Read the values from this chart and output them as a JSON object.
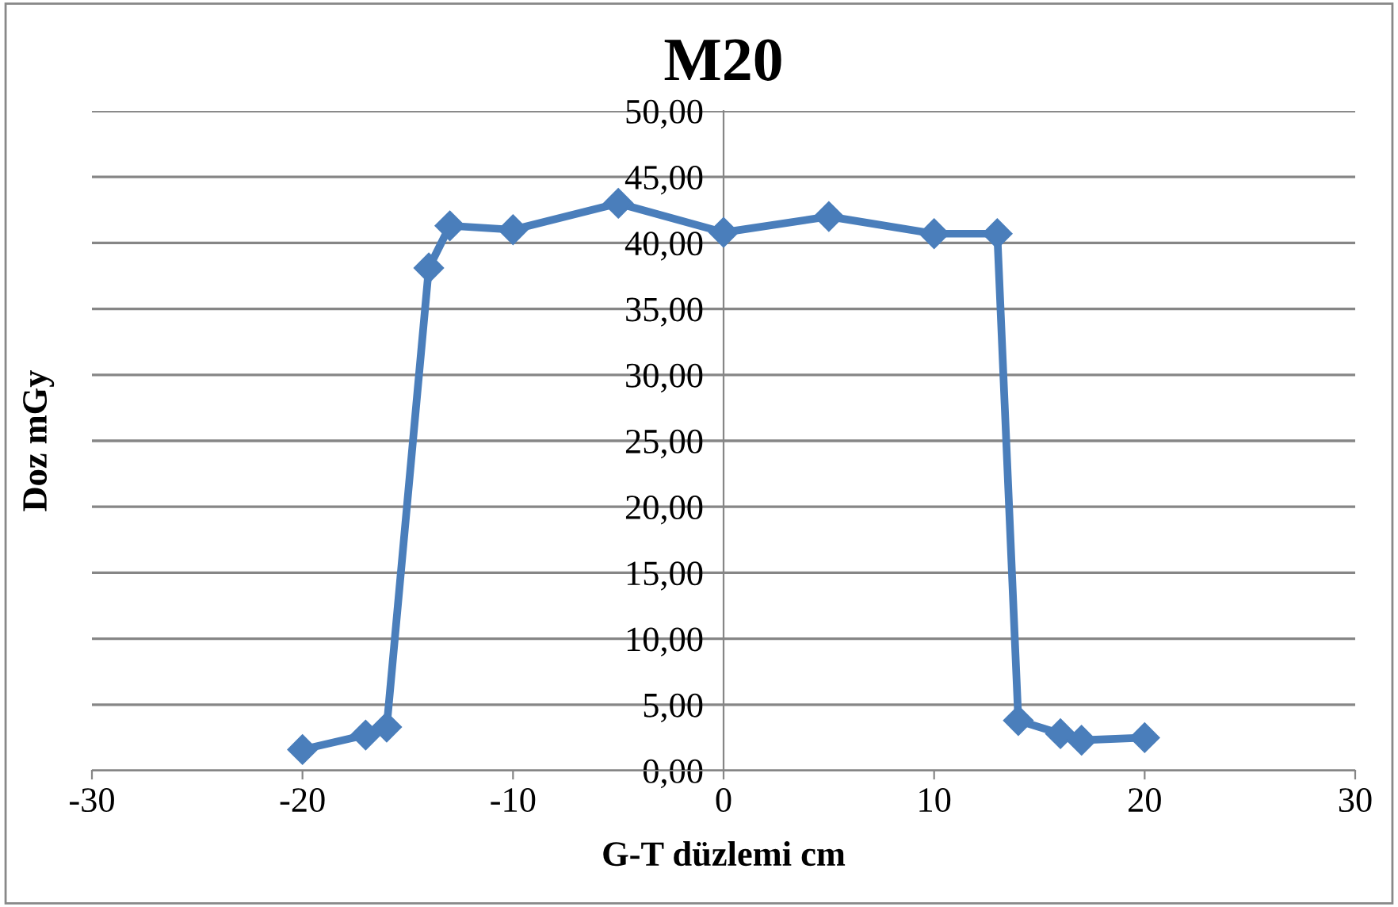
{
  "chart_data": {
    "type": "line",
    "title": "M20",
    "xlabel": "G-T düzlemi cm",
    "ylabel": "Doz mGy",
    "series": [
      {
        "color": "#4a7ebb",
        "x": [
          -20,
          -17,
          -16,
          -14,
          -13,
          -10,
          -5,
          0,
          5,
          10,
          13,
          14,
          16,
          17,
          20
        ],
        "values": [
          1.6,
          2.7,
          3.3,
          38.1,
          41.3,
          41.0,
          43.0,
          40.8,
          42.0,
          40.7,
          40.7,
          3.8,
          2.8,
          2.3,
          2.5
        ]
      }
    ],
    "xlim": [
      -30,
      30
    ],
    "xticks": [
      -30,
      -20,
      -10,
      0,
      10,
      20,
      30
    ],
    "ylim": [
      0,
      50
    ],
    "yticks": [
      {
        "value": 0,
        "label": "0,00"
      },
      {
        "value": 5,
        "label": "5,00"
      },
      {
        "value": 10,
        "label": "10,00"
      },
      {
        "value": 15,
        "label": "15,00"
      },
      {
        "value": 20,
        "label": "20,00"
      },
      {
        "value": 25,
        "label": "25,00"
      },
      {
        "value": 30,
        "label": "30,00"
      },
      {
        "value": 35,
        "label": "35,00"
      },
      {
        "value": 40,
        "label": "40,00"
      },
      {
        "value": 45,
        "label": "45,00"
      },
      {
        "value": 50,
        "label": "50,00"
      }
    ],
    "grid": "y",
    "marker": "diamond",
    "line_style": "solid",
    "legend": false
  }
}
